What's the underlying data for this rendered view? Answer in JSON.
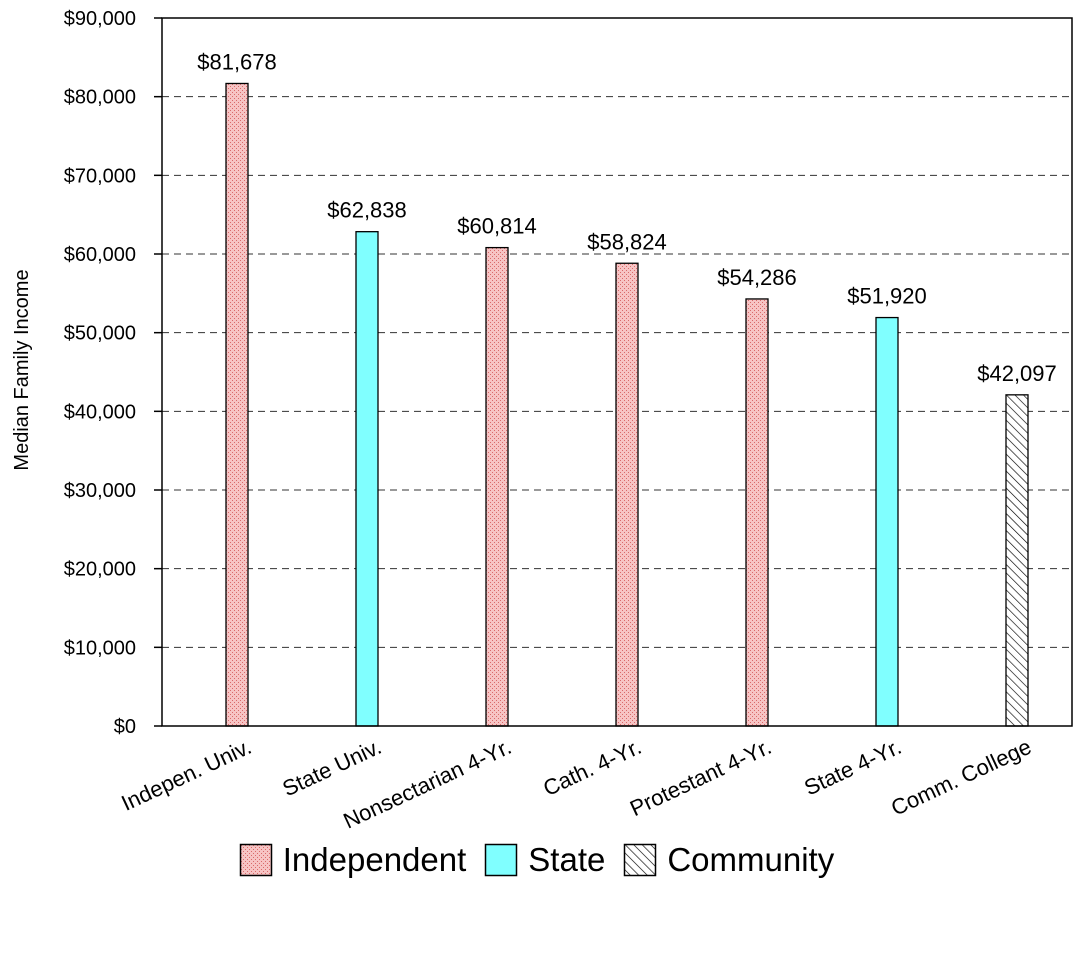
{
  "chart_data": {
    "type": "bar",
    "title": "",
    "xlabel": "",
    "ylabel": "Median Family Income",
    "ylim": [
      0,
      90000
    ],
    "yticks": [
      0,
      10000,
      20000,
      30000,
      40000,
      50000,
      60000,
      70000,
      80000,
      90000
    ],
    "ytick_labels": [
      "$0",
      "$10,000",
      "$20,000",
      "$30,000",
      "$40,000",
      "$50,000",
      "$60,000",
      "$70,000",
      "$80,000",
      "$90,000"
    ],
    "grid": "horizontal dashed",
    "legend_position": "bottom",
    "categories": [
      "Indepen. Univ.",
      "State Univ.",
      "Nonsectarian 4-Yr.",
      "Cath. 4-Yr.",
      "Protestant 4-Yr.",
      "State 4-Yr.",
      "Comm. College"
    ],
    "series": [
      {
        "name": "Independent",
        "color": "#f4a8a8",
        "pattern": "dots",
        "values": [
          81678,
          null,
          60814,
          58824,
          54286,
          null,
          null
        ]
      },
      {
        "name": "State",
        "color": "#80ffff",
        "pattern": "solid",
        "values": [
          null,
          62838,
          null,
          null,
          null,
          51920,
          null
        ]
      },
      {
        "name": "Community",
        "color": "#ffffff",
        "pattern": "hatch",
        "values": [
          null,
          null,
          null,
          null,
          null,
          null,
          42097
        ]
      }
    ],
    "data_labels": [
      "$81,678",
      "$62,838",
      "$60,814",
      "$58,824",
      "$54,286",
      "$51,920",
      "$42,097"
    ]
  }
}
